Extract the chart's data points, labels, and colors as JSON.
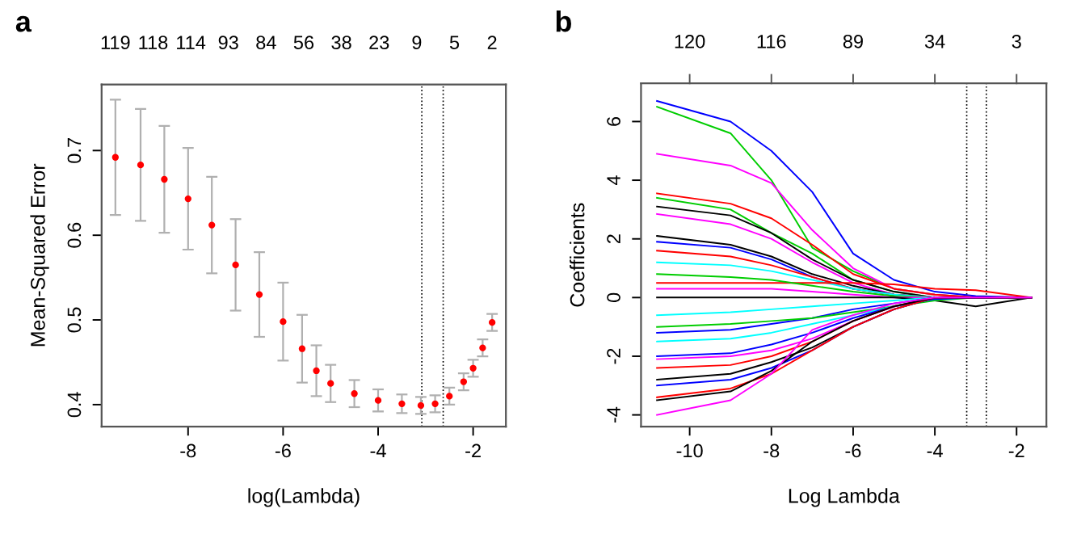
{
  "chart_data": [
    {
      "type": "scatter",
      "title": "a",
      "xlabel": "log(Lambda)",
      "ylabel": "Mean-Squared Error",
      "marker": "circle",
      "xlim": [
        -9.82,
        -1.31
      ],
      "ylim": [
        0.374,
        0.778
      ],
      "xticks": [
        -8,
        -6,
        -4,
        -2
      ],
      "yticks": [
        0.4,
        0.5,
        0.6,
        0.7
      ],
      "annotations": [
        "119",
        "118",
        "114",
        "93",
        "84",
        "56",
        "38",
        "23",
        "9",
        "5",
        "2"
      ],
      "x": [
        -9.53,
        -9.0,
        -8.5,
        -8.0,
        -7.5,
        -7.0,
        -6.5,
        -6.0,
        -5.6,
        -5.3,
        -5.0,
        -4.5,
        -4.0,
        -3.5,
        -3.1,
        -2.8,
        -2.5,
        -2.2,
        -2.0,
        -1.8,
        -1.6
      ],
      "series": [
        {
          "color": "#ff0000",
          "values": [
            0.692,
            0.683,
            0.666,
            0.643,
            0.612,
            0.565,
            0.53,
            0.498,
            0.466,
            0.44,
            0.425,
            0.413,
            0.405,
            0.401,
            0.399,
            0.401,
            0.41,
            0.427,
            0.443,
            0.467,
            0.497
          ],
          "errors": [
            0.068,
            0.066,
            0.063,
            0.06,
            0.057,
            0.054,
            0.05,
            0.046,
            0.04,
            0.03,
            0.022,
            0.016,
            0.013,
            0.011,
            0.01,
            0.01,
            0.01,
            0.01,
            0.01,
            0.01,
            0.01
          ]
        }
      ],
      "ref_lines": [
        {
          "axis": "x",
          "value": -3.08,
          "line_style": "dotted",
          "color": "#000000"
        },
        {
          "axis": "x",
          "value": -2.63,
          "line_style": "dotted",
          "color": "#000000"
        }
      ]
    },
    {
      "type": "line",
      "title": "b",
      "xlabel": "Log Lambda",
      "ylabel": "Coefficients",
      "line_style": "solid",
      "xlim": [
        -11.19,
        -1.27
      ],
      "ylim": [
        -4.4,
        7.3
      ],
      "xticks": [
        -10,
        -8,
        -6,
        -4,
        -2
      ],
      "yticks": [
        -4,
        -2,
        0,
        2,
        4,
        6
      ],
      "annotations": [
        "120",
        "116",
        "89",
        "34",
        "3"
      ],
      "x": [
        -10.8,
        -9,
        -8,
        -7,
        -6,
        -5,
        -4,
        -3,
        -1.64
      ],
      "series": [
        {
          "color": "#0000ff",
          "values": [
            6.7,
            6.0,
            5.0,
            3.6,
            1.5,
            0.6,
            0.2,
            0.05,
            0
          ]
        },
        {
          "color": "#00cd00",
          "values": [
            6.5,
            5.6,
            4.0,
            1.7,
            0.9,
            0.3,
            0.1,
            0,
            0
          ]
        },
        {
          "color": "#ff00ff",
          "values": [
            4.9,
            4.5,
            3.9,
            2.3,
            1.0,
            0.3,
            0.1,
            0,
            0
          ]
        },
        {
          "color": "#ff0000",
          "values": [
            3.55,
            3.2,
            2.7,
            1.8,
            0.8,
            0.3,
            0.1,
            0,
            0
          ]
        },
        {
          "color": "#00cd00",
          "values": [
            3.4,
            3.0,
            2.2,
            1.5,
            0.6,
            0.2,
            0,
            0,
            0
          ]
        },
        {
          "color": "#000000",
          "values": [
            3.1,
            2.8,
            2.2,
            1.3,
            0.6,
            0.2,
            0,
            0,
            0
          ]
        },
        {
          "color": "#ff00ff",
          "values": [
            2.85,
            2.5,
            2.0,
            1.2,
            0.5,
            0.1,
            0,
            0,
            0
          ]
        },
        {
          "color": "#000000",
          "values": [
            2.1,
            1.8,
            1.4,
            0.8,
            0.4,
            0.1,
            0,
            0,
            0
          ]
        },
        {
          "color": "#0000ff",
          "values": [
            1.9,
            1.7,
            1.3,
            0.7,
            0.3,
            0.1,
            0,
            0,
            0
          ]
        },
        {
          "color": "#ff0000",
          "values": [
            1.6,
            1.4,
            1.1,
            0.7,
            0.3,
            0.1,
            0,
            0,
            0
          ]
        },
        {
          "color": "#00ffff",
          "values": [
            1.2,
            1.1,
            0.9,
            0.6,
            0.3,
            0.1,
            0,
            0,
            0
          ]
        },
        {
          "color": "#ff0000",
          "values": [
            0.5,
            0.5,
            0.5,
            0.5,
            0.5,
            0.45,
            0.3,
            0.25,
            0
          ]
        },
        {
          "color": "#00cd00",
          "values": [
            0.8,
            0.7,
            0.6,
            0.4,
            0.2,
            0.05,
            0,
            0,
            0
          ]
        },
        {
          "color": "#ff00ff",
          "values": [
            0.3,
            0.3,
            0.3,
            0.2,
            0.1,
            0,
            0,
            0,
            0
          ]
        },
        {
          "color": "#000000",
          "values": [
            0,
            0,
            0,
            0,
            0,
            0,
            -0.1,
            -0.3,
            0
          ]
        },
        {
          "color": "#00ffff",
          "values": [
            -0.6,
            -0.5,
            -0.4,
            -0.3,
            -0.2,
            -0.1,
            0,
            0,
            0
          ]
        },
        {
          "color": "#0000ff",
          "values": [
            -1.2,
            -1.1,
            -0.9,
            -0.7,
            -0.4,
            -0.2,
            0,
            0,
            0
          ]
        },
        {
          "color": "#00cd00",
          "values": [
            -1.0,
            -0.9,
            -0.8,
            -0.7,
            -0.5,
            -0.3,
            -0.1,
            0,
            0
          ]
        },
        {
          "color": "#00ffff",
          "values": [
            -1.5,
            -1.4,
            -1.2,
            -0.9,
            -0.6,
            -0.3,
            -0.05,
            0,
            0
          ]
        },
        {
          "color": "#0000ff",
          "values": [
            -2.0,
            -1.9,
            -1.6,
            -1.2,
            -0.7,
            -0.3,
            -0.05,
            0,
            0
          ]
        },
        {
          "color": "#ff00ff",
          "values": [
            -2.1,
            -2.0,
            -1.8,
            -1.4,
            -0.8,
            -0.3,
            0,
            0,
            0
          ]
        },
        {
          "color": "#ff0000",
          "values": [
            -2.4,
            -2.3,
            -2.0,
            -1.5,
            -0.8,
            -0.3,
            0,
            0,
            0
          ]
        },
        {
          "color": "#000000",
          "values": [
            -2.8,
            -2.6,
            -2.2,
            -1.7,
            -1.0,
            -0.4,
            0,
            0,
            0
          ]
        },
        {
          "color": "#0000ff",
          "values": [
            -3.0,
            -2.8,
            -2.4,
            -1.8,
            -1.0,
            -0.4,
            0,
            0,
            0
          ]
        },
        {
          "color": "#ff0000",
          "values": [
            -3.4,
            -3.1,
            -2.6,
            -1.8,
            -1.0,
            -0.4,
            0,
            0,
            0
          ]
        },
        {
          "color": "#000000",
          "values": [
            -3.5,
            -3.2,
            -2.5,
            -1.5,
            -0.8,
            -0.3,
            0,
            0,
            0
          ]
        },
        {
          "color": "#ff00ff",
          "values": [
            -4.0,
            -3.5,
            -2.6,
            -1.1,
            -0.6,
            -0.2,
            0,
            0,
            0
          ]
        }
      ],
      "ref_lines": [
        {
          "axis": "x",
          "value": -3.22,
          "line_style": "dotted",
          "color": "#000000"
        },
        {
          "axis": "x",
          "value": -2.74,
          "line_style": "dotted",
          "color": "#000000"
        }
      ]
    }
  ]
}
